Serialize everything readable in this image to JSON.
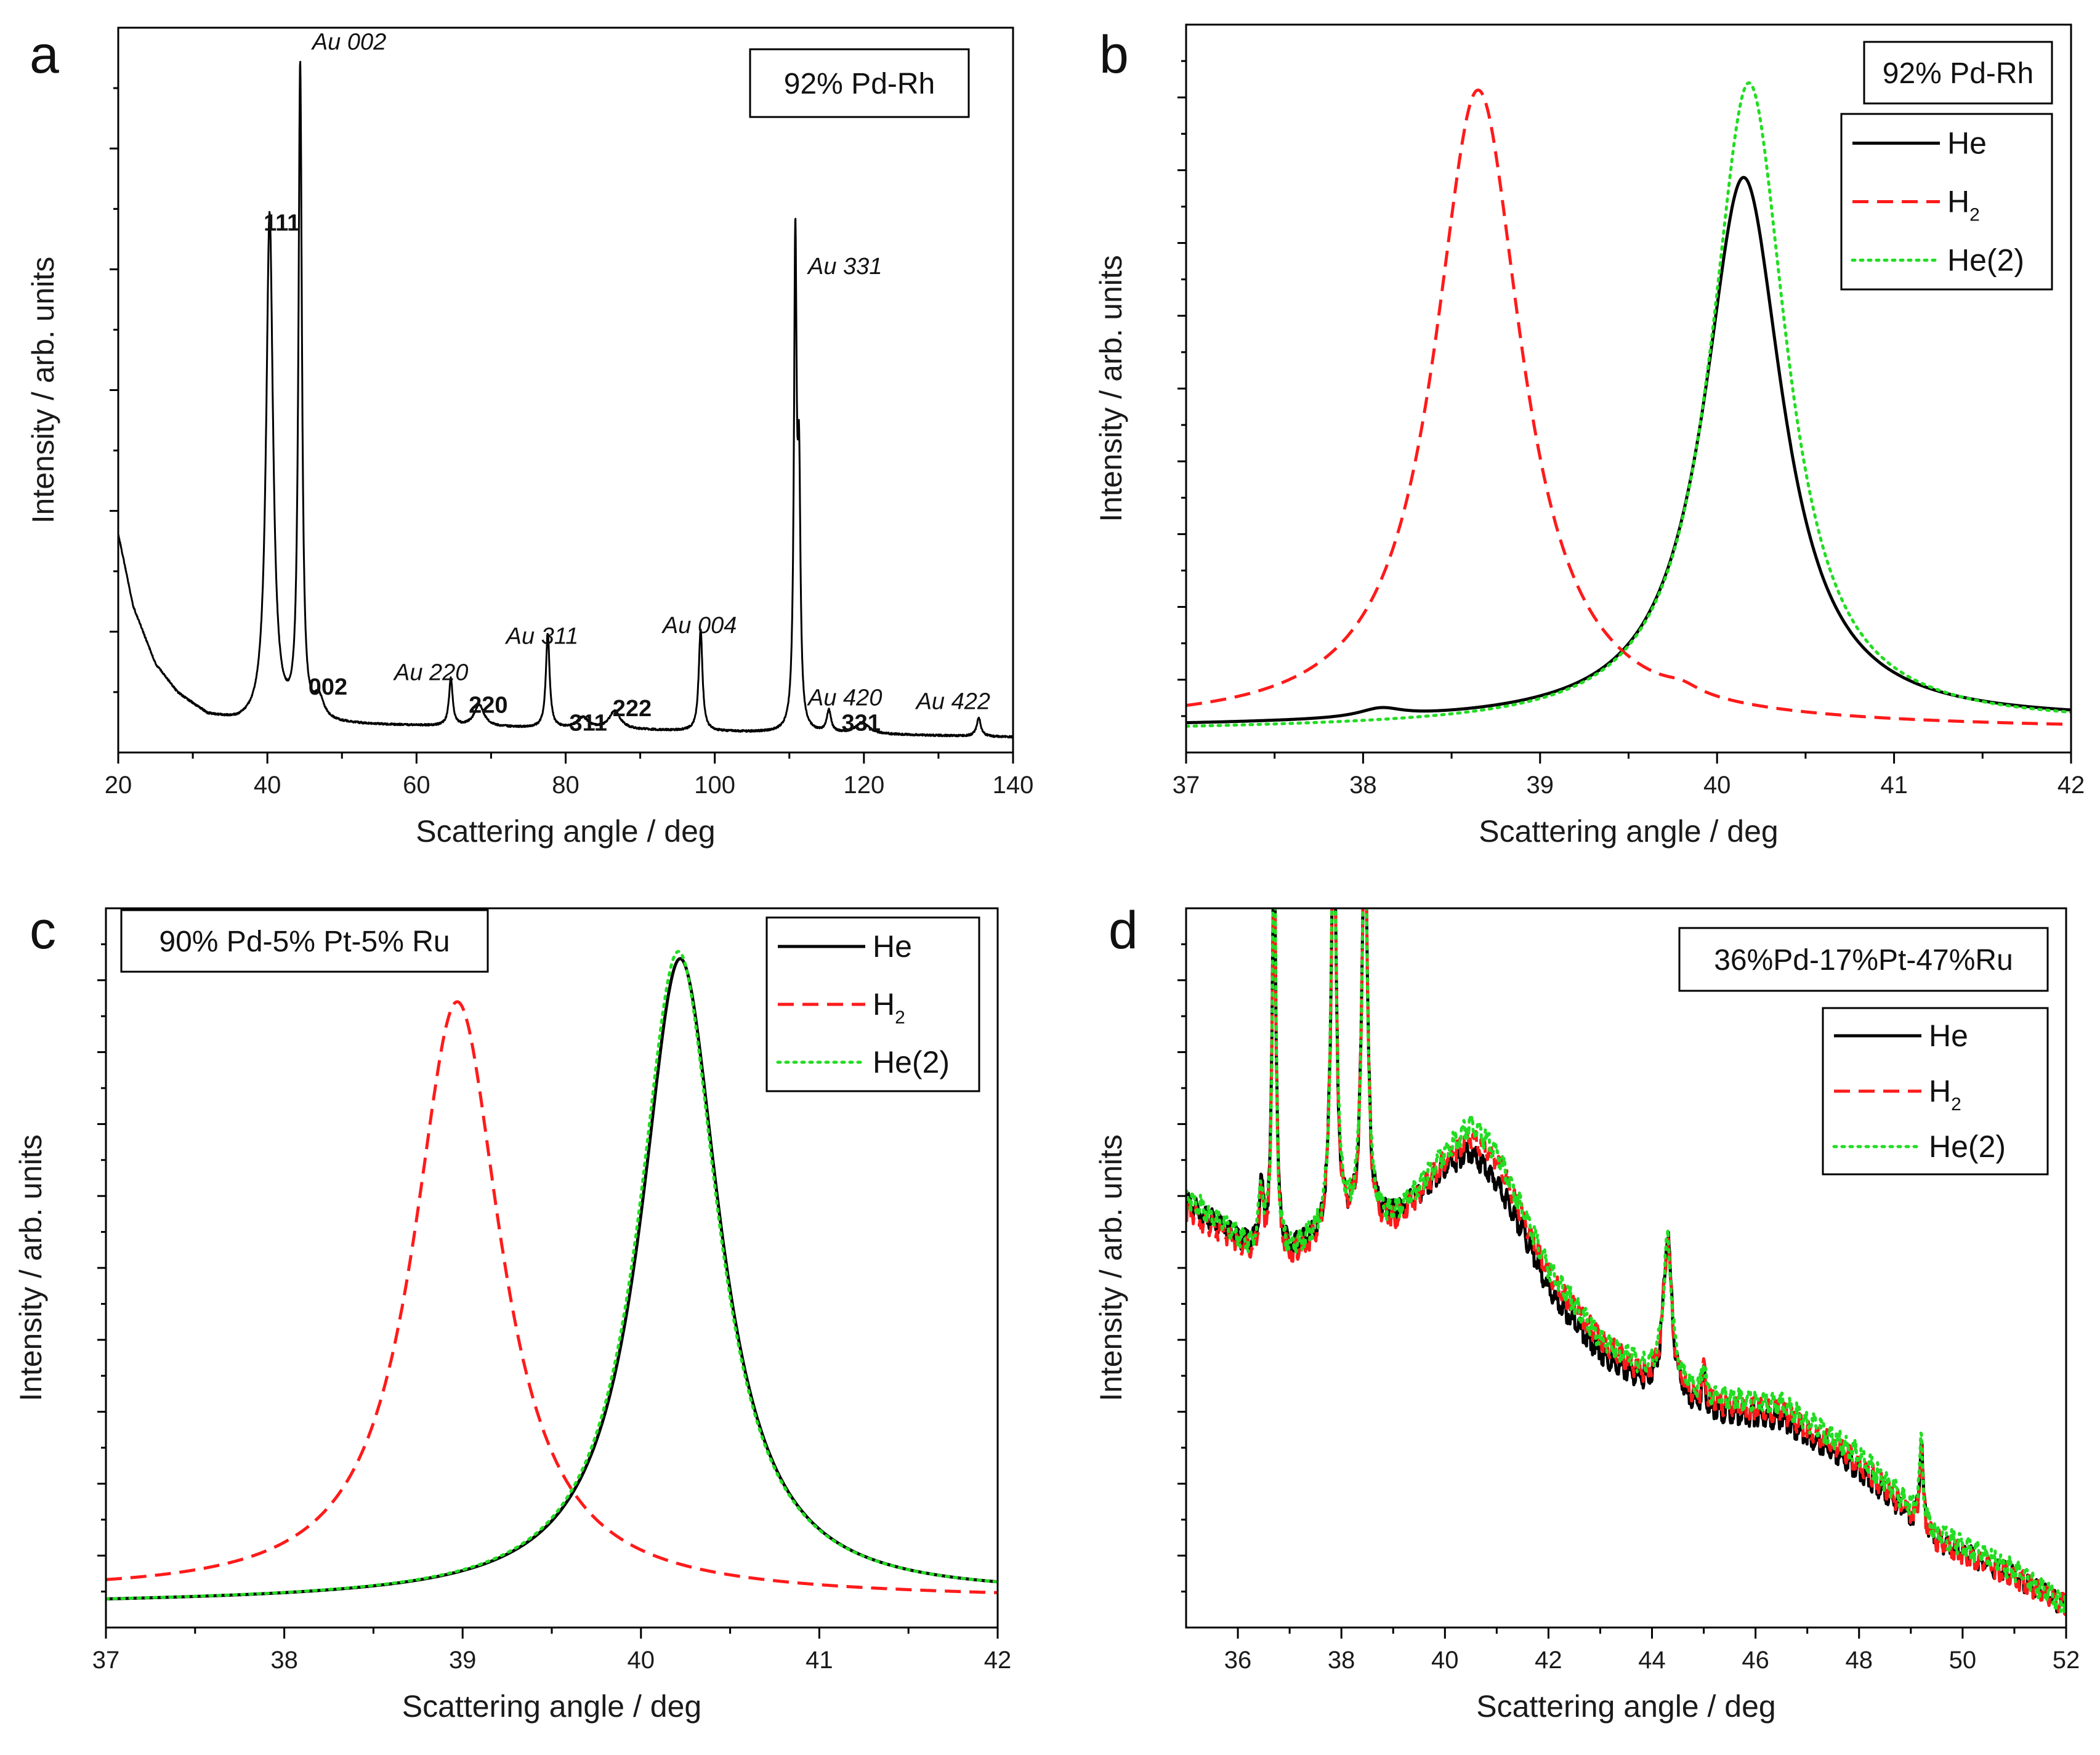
{
  "figure": {
    "y_axis_title": "Intensity / arb. units",
    "x_axis_title": "Scattering angle / deg",
    "colors": {
      "He": "#000000",
      "H2": "#ff1a1a",
      "He2": "#22dd22",
      "axis": "#000000"
    }
  },
  "chart_data": [
    {
      "id": "a",
      "panel_label": "a",
      "type": "line",
      "sample_label": "92% Pd-Rh",
      "xlabel": "Scattering angle / deg",
      "ylabel": "Intensity / arb. units",
      "xlim": [
        20,
        140
      ],
      "ylim": [
        0,
        100
      ],
      "xticks": [
        20,
        40,
        60,
        80,
        100,
        120,
        140
      ],
      "y_tick_labels_shown": false,
      "series": [
        {
          "name": "pattern",
          "color": "#000000",
          "style": "solid",
          "background": {
            "x": [
              20,
              22,
              25,
              28,
              32,
              36,
              140
            ],
            "y": [
              30,
              20,
              12,
              8,
              5,
              4,
              2
            ]
          },
          "peaks": [
            {
              "x": 40.3,
              "height": 70,
              "width": 0.55
            },
            {
              "x": 44.4,
              "height": 90,
              "width": 0.28
            },
            {
              "x": 46.9,
              "height": 3,
              "width": 0.8
            },
            {
              "x": 64.6,
              "height": 6.5,
              "width": 0.3
            },
            {
              "x": 68.4,
              "height": 3,
              "width": 0.8
            },
            {
              "x": 77.6,
              "height": 13,
              "width": 0.3
            },
            {
              "x": 82.3,
              "height": 1.5,
              "width": 0.9
            },
            {
              "x": 86.6,
              "height": 2.5,
              "width": 0.9
            },
            {
              "x": 98.1,
              "height": 14,
              "width": 0.3
            },
            {
              "x": 110.8,
              "height": 66,
              "width": 0.22
            },
            {
              "x": 111.3,
              "height": 32,
              "width": 0.22
            },
            {
              "x": 115.3,
              "height": 3,
              "width": 0.35
            },
            {
              "x": 119.8,
              "height": 1.5,
              "width": 1.1
            },
            {
              "x": 135.4,
              "height": 2.5,
              "width": 0.35
            }
          ]
        }
      ],
      "annotations": [
        {
          "text": "111",
          "x": 39.5,
          "y": 72,
          "style": "bold"
        },
        {
          "text": "Au 002",
          "x": 46.0,
          "y": 97,
          "style": "italic"
        },
        {
          "text": "002",
          "x": 45.5,
          "y": 8,
          "style": "bold"
        },
        {
          "text": "Au 220",
          "x": 57.0,
          "y": 10,
          "style": "italic"
        },
        {
          "text": "220",
          "x": 67.0,
          "y": 5.5,
          "style": "bold"
        },
        {
          "text": "Au 311",
          "x": 72.0,
          "y": 15,
          "style": "italic"
        },
        {
          "text": "311",
          "x": 80.5,
          "y": 3,
          "style": "bold"
        },
        {
          "text": "222",
          "x": 86.3,
          "y": 5,
          "style": "bold"
        },
        {
          "text": "Au 004",
          "x": 93.0,
          "y": 16.5,
          "style": "italic"
        },
        {
          "text": "Au 331",
          "x": 112.5,
          "y": 66,
          "style": "italic"
        },
        {
          "text": "Au 420",
          "x": 112.5,
          "y": 6.5,
          "style": "italic"
        },
        {
          "text": "331",
          "x": 117.0,
          "y": 3,
          "style": "bold"
        },
        {
          "text": "Au 422",
          "x": 127.0,
          "y": 6,
          "style": "italic"
        }
      ]
    },
    {
      "id": "b",
      "panel_label": "b",
      "type": "line",
      "sample_label": "92% Pd-Rh",
      "xlabel": "Scattering angle / deg",
      "ylabel": "Intensity / arb. units",
      "xlim": [
        37,
        42
      ],
      "ylim": [
        0,
        100
      ],
      "xticks": [
        37,
        38,
        39,
        40,
        41,
        42
      ],
      "y_tick_labels_shown": false,
      "legend": [
        {
          "key": "He",
          "label": "He",
          "subscript": ""
        },
        {
          "key": "H2",
          "label": "H",
          "subscript": "2"
        },
        {
          "key": "He2",
          "label": "He(2)",
          "subscript": ""
        }
      ],
      "series": [
        {
          "key": "He",
          "name": "He",
          "color": "#000000",
          "style": "solid",
          "center": 40.15,
          "peak": 79,
          "hwhm": 0.27,
          "baseline": 4,
          "baseline_slope": 0.3,
          "bumps": [
            {
              "x": 38.1,
              "height": 1.2,
              "width": 0.15
            }
          ]
        },
        {
          "key": "H2",
          "name": "H2",
          "color": "#ff1a1a",
          "style": "dashed",
          "center": 38.65,
          "peak": 91,
          "hwhm": 0.3,
          "baseline": 3.5,
          "baseline_slope": -0.2,
          "bumps": [
            {
              "x": 39.8,
              "height": 1.0,
              "width": 0.12
            }
          ]
        },
        {
          "key": "He2",
          "name": "He(2)",
          "color": "#22dd22",
          "style": "dotted",
          "center": 40.18,
          "peak": 92,
          "hwhm": 0.26,
          "baseline": 3.5,
          "baseline_slope": 0.3,
          "bumps": []
        }
      ]
    },
    {
      "id": "c",
      "panel_label": "c",
      "type": "line",
      "sample_label": "90% Pd-5% Pt-5% Ru",
      "xlabel": "Scattering angle / deg",
      "ylabel": "Intensity / arb. units",
      "xlim": [
        37,
        42
      ],
      "ylim": [
        0,
        100
      ],
      "xticks": [
        37,
        38,
        39,
        40,
        41,
        42
      ],
      "y_tick_labels_shown": false,
      "legend": [
        {
          "key": "He",
          "label": "He",
          "subscript": ""
        },
        {
          "key": "H2",
          "label": "H",
          "subscript": "2"
        },
        {
          "key": "He2",
          "label": "He(2)",
          "subscript": ""
        }
      ],
      "series": [
        {
          "key": "He",
          "name": "He",
          "color": "#000000",
          "style": "solid",
          "center": 40.22,
          "peak": 93,
          "hwhm": 0.27,
          "baseline": 4,
          "baseline_slope": 0.4,
          "bumps": []
        },
        {
          "key": "H2",
          "name": "H2",
          "color": "#ff1a1a",
          "style": "dashed",
          "center": 38.97,
          "peak": 87,
          "hwhm": 0.3,
          "baseline": 4.5,
          "baseline_slope": -0.3,
          "bumps": []
        },
        {
          "key": "He2",
          "name": "He(2)",
          "color": "#22dd22",
          "style": "dotted",
          "center": 40.21,
          "peak": 94,
          "hwhm": 0.27,
          "baseline": 4,
          "baseline_slope": 0.4,
          "bumps": []
        }
      ]
    },
    {
      "id": "d",
      "panel_label": "d",
      "type": "line",
      "sample_label": "36%Pd-17%Pt-47%Ru",
      "xlabel": "Scattering angle / deg",
      "ylabel": "Intensity / arb. units",
      "xlim": [
        35,
        52
      ],
      "ylim": [
        0,
        100
      ],
      "xticks": [
        36,
        38,
        40,
        42,
        44,
        46,
        48,
        50,
        52
      ],
      "y_tick_labels_shown": false,
      "legend": [
        {
          "key": "He",
          "label": "He",
          "subscript": ""
        },
        {
          "key": "H2",
          "label": "H",
          "subscript": "2"
        },
        {
          "key": "He2",
          "label": "He(2)",
          "subscript": ""
        }
      ],
      "series": [
        {
          "key": "He",
          "name": "He",
          "color": "#000000",
          "style": "solid",
          "base": {
            "x": [
              35,
              36.2,
              37.0,
              38.0,
              39.0,
              39.5,
              40.0,
              40.5,
              41.0,
              41.5,
              42.0,
              43.0,
              43.8,
              45.0,
              46.5,
              48.0,
              49.5,
              51.0,
              52.0
            ],
            "y": [
              59,
              53,
              52,
              55,
              57,
              60,
              64,
              66,
              62,
              55,
              47,
              38,
              34,
              30,
              29,
              22,
              12,
              7,
              3
            ]
          },
          "peaks": [
            {
              "x": 36.45,
              "height": 8,
              "width": 0.05
            },
            {
              "x": 36.7,
              "height": 60,
              "width": 0.04
            },
            {
              "x": 37.85,
              "height": 60,
              "width": 0.06
            },
            {
              "x": 38.45,
              "height": 60,
              "width": 0.06
            },
            {
              "x": 44.3,
              "height": 22,
              "width": 0.1
            },
            {
              "x": 45.0,
              "height": 5,
              "width": 0.04
            },
            {
              "x": 49.2,
              "height": 12,
              "width": 0.04
            }
          ]
        },
        {
          "key": "H2",
          "name": "H2",
          "color": "#ff1a1a",
          "style": "dashed",
          "base": {
            "x": [
              35,
              36.2,
              37.0,
              38.0,
              39.0,
              39.5,
              40.0,
              40.5,
              41.0,
              41.5,
              42.0,
              43.0,
              43.8,
              45.0,
              46.5,
              48.0,
              49.5,
              51.0,
              52.0
            ],
            "y": [
              58,
              52,
              51,
              55,
              56,
              60,
              65,
              68,
              65,
              57,
              49,
              40,
              35,
              31,
              30,
              23,
              12,
              7,
              3
            ]
          },
          "peaks": [
            {
              "x": 36.45,
              "height": 8,
              "width": 0.05
            },
            {
              "x": 36.7,
              "height": 60,
              "width": 0.04
            },
            {
              "x": 37.85,
              "height": 60,
              "width": 0.06
            },
            {
              "x": 38.45,
              "height": 60,
              "width": 0.06
            },
            {
              "x": 44.3,
              "height": 20,
              "width": 0.1
            },
            {
              "x": 45.0,
              "height": 5,
              "width": 0.04
            },
            {
              "x": 49.2,
              "height": 11,
              "width": 0.04
            }
          ]
        },
        {
          "key": "He2",
          "name": "He(2)",
          "color": "#22dd22",
          "style": "dotted",
          "base": {
            "x": [
              35,
              36.2,
              37.0,
              38.0,
              39.0,
              39.5,
              40.0,
              40.5,
              41.0,
              41.5,
              42.0,
              43.0,
              43.8,
              45.0,
              46.5,
              48.0,
              49.5,
              51.0,
              52.0
            ],
            "y": [
              60,
              53,
              52,
              56,
              57,
              61,
              66,
              70,
              66,
              58,
              50,
              40,
              36,
              32,
              31,
              24,
              13,
              8,
              3
            ]
          },
          "peaks": [
            {
              "x": 36.45,
              "height": 8,
              "width": 0.05
            },
            {
              "x": 36.7,
              "height": 60,
              "width": 0.04
            },
            {
              "x": 37.85,
              "height": 60,
              "width": 0.06
            },
            {
              "x": 38.45,
              "height": 60,
              "width": 0.06
            },
            {
              "x": 44.3,
              "height": 20,
              "width": 0.1
            },
            {
              "x": 45.0,
              "height": 5,
              "width": 0.04
            },
            {
              "x": 49.2,
              "height": 11,
              "width": 0.04
            }
          ]
        }
      ]
    }
  ]
}
